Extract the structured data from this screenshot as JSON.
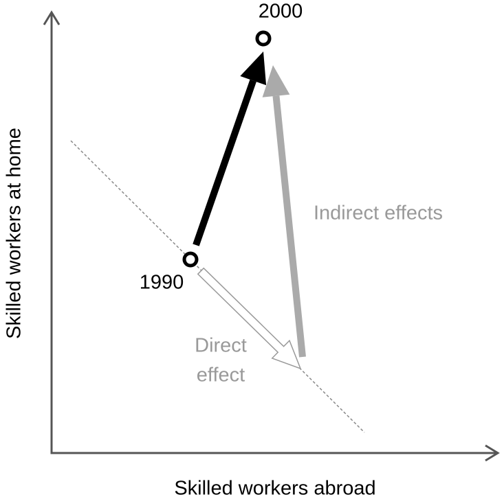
{
  "x_axis_label": "Skilled workers abroad",
  "y_axis_label": "Skilled workers at home",
  "points": [
    {
      "label": "1990"
    },
    {
      "label": "2000"
    }
  ],
  "arrows": {
    "direct": [
      "Direct",
      "effect"
    ],
    "indirect": "Indirect effects"
  }
}
